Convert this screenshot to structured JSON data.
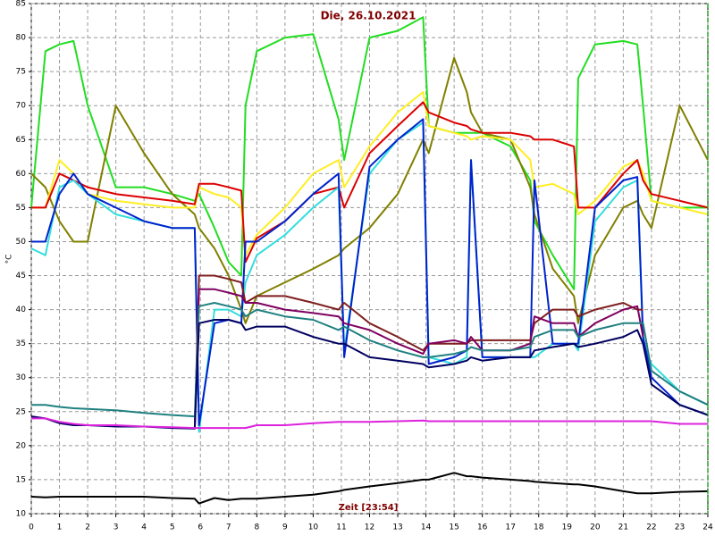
{
  "chart_data": {
    "type": "line",
    "title": "Die, 26.10.2021",
    "x_label": "Zeit [23:54]",
    "y_label": "°C",
    "x": [
      0,
      0.5,
      1,
      1.5,
      2,
      3,
      4,
      5,
      5.8,
      5.95,
      6.5,
      7,
      7.45,
      7.6,
      8,
      9,
      10,
      10.9,
      11.1,
      12,
      13,
      13.9,
      14.1,
      15,
      15.45,
      15.6,
      16,
      17,
      17.7,
      17.85,
      18.5,
      19.25,
      19.4,
      20,
      21,
      21.5,
      21.7,
      22,
      23,
      24
    ],
    "xlim": [
      0,
      24
    ],
    "xticks": [
      0,
      1,
      2,
      3,
      4,
      5,
      6,
      7,
      8,
      9,
      10,
      11,
      12,
      13,
      14,
      15,
      16,
      17,
      18,
      19,
      20,
      21,
      22,
      23,
      24
    ],
    "ylim": [
      10,
      85
    ],
    "yticks": [
      10,
      15,
      20,
      25,
      30,
      35,
      40,
      45,
      50,
      55,
      60,
      65,
      70,
      75,
      80,
      85
    ],
    "grid": true,
    "series": [
      {
        "color": "#22dd22",
        "values": [
          55,
          78,
          79,
          79.5,
          70,
          58,
          58,
          57,
          56,
          57,
          52,
          47,
          45,
          70,
          78,
          80,
          80.5,
          68,
          62,
          80,
          81,
          83,
          67,
          66,
          66,
          66,
          66,
          64,
          59,
          53,
          48,
          43,
          74,
          79,
          79.5,
          79,
          70,
          56,
          55,
          55
        ]
      },
      {
        "color": "#808000",
        "values": [
          60,
          58,
          53,
          50,
          50,
          70,
          63,
          57,
          54,
          52,
          49,
          45,
          40,
          38,
          42,
          44,
          46,
          48,
          49,
          52,
          57,
          65,
          63,
          77,
          72,
          69,
          66,
          65,
          58,
          54,
          46,
          42,
          38,
          48,
          55,
          56,
          54,
          52,
          70,
          62
        ]
      },
      {
        "color": "#ffee22",
        "values": [
          55,
          55,
          62,
          60,
          57,
          56,
          55.5,
          55,
          55,
          58,
          57,
          56.5,
          55,
          48,
          51,
          55,
          60,
          62,
          58,
          64,
          69,
          72,
          67,
          66,
          65.5,
          65,
          65.5,
          65,
          62,
          58,
          58.5,
          57,
          54,
          56,
          61,
          62,
          60,
          56,
          55,
          54
        ]
      },
      {
        "color": "#dd0000",
        "values": [
          55,
          55,
          60,
          59,
          58,
          57,
          56.5,
          56,
          55.5,
          58.5,
          58.5,
          58,
          57.5,
          47,
          50.5,
          53,
          57,
          58,
          55,
          63,
          67,
          70.5,
          69,
          67.5,
          67,
          66.5,
          66,
          66,
          65.5,
          65,
          65,
          64,
          55,
          55,
          60,
          62,
          59,
          57,
          56,
          55
        ]
      },
      {
        "color": "#33dddd",
        "values": [
          49,
          48,
          58,
          59,
          57,
          54,
          53,
          52,
          52,
          22,
          40,
          40,
          39,
          44,
          48,
          51,
          55,
          58,
          34,
          60,
          65,
          67.5,
          33,
          32,
          33,
          62,
          33,
          33,
          33,
          33,
          35,
          35,
          34,
          53,
          58,
          59,
          35,
          32,
          28,
          26
        ]
      },
      {
        "color": "#0022cc",
        "values": [
          50,
          50,
          57,
          60,
          57,
          55,
          53,
          52,
          52,
          23,
          38,
          38.5,
          38,
          50,
          50,
          53,
          57,
          60,
          33,
          61,
          65,
          68,
          32,
          33,
          34,
          62,
          33,
          33,
          33,
          59,
          35,
          35,
          35,
          55,
          59,
          59.5,
          36,
          30,
          26,
          24.5
        ]
      },
      {
        "color": "#7f1f1f",
        "values": [
          null,
          null,
          null,
          null,
          null,
          null,
          null,
          null,
          22.5,
          45,
          45,
          44.5,
          44,
          41,
          42,
          42,
          41,
          40,
          41,
          38,
          36,
          34,
          35,
          35,
          35,
          35.5,
          35.5,
          35.5,
          35.5,
          38,
          40,
          40,
          39,
          40,
          41,
          40,
          40,
          null,
          null,
          null
        ]
      },
      {
        "color": "#800060",
        "values": [
          null,
          null,
          null,
          null,
          null,
          null,
          null,
          null,
          22.5,
          43,
          43,
          42.5,
          42,
          41,
          41,
          40,
          39.5,
          39,
          38,
          37,
          35,
          33.5,
          35,
          35.5,
          35,
          36,
          34,
          34,
          35,
          39,
          38,
          38,
          36,
          38,
          40,
          40.5,
          36,
          null,
          null,
          null
        ]
      },
      {
        "color": "#208080",
        "values": [
          26,
          26,
          25.7,
          25.5,
          25.4,
          25.2,
          24.8,
          24.5,
          24.3,
          40.5,
          41,
          40.5,
          40,
          39,
          40,
          39,
          38.5,
          37,
          37.5,
          35.5,
          34,
          33,
          33,
          33.5,
          34,
          34.5,
          34,
          34,
          34.5,
          36,
          37,
          37,
          36,
          37,
          38,
          38,
          38,
          31,
          28,
          26
        ]
      },
      {
        "color": "#000060",
        "values": [
          24.3,
          24,
          23.3,
          23,
          23,
          22.8,
          22.8,
          22.6,
          22.5,
          38,
          38.5,
          38.5,
          38,
          37,
          37.5,
          37.5,
          36,
          35,
          35,
          33,
          32.5,
          32,
          31.5,
          32,
          32.5,
          33,
          32.5,
          33,
          33,
          34,
          34.5,
          35,
          34.5,
          35,
          36,
          37,
          35,
          29,
          26,
          24.5
        ]
      },
      {
        "color": "#dd22dd",
        "values": [
          24,
          24,
          23.5,
          23.2,
          23,
          23,
          22.8,
          22.7,
          22.6,
          22.6,
          22.6,
          22.6,
          22.6,
          22.6,
          23,
          23,
          23.3,
          23.5,
          23.5,
          23.5,
          23.6,
          23.7,
          23.6,
          23.6,
          23.6,
          23.6,
          23.6,
          23.6,
          23.6,
          23.6,
          23.6,
          23.6,
          23.6,
          23.6,
          23.6,
          23.6,
          23.6,
          23.6,
          23.2,
          23.2
        ]
      },
      {
        "color": "#000000",
        "values": [
          12.5,
          12.4,
          12.5,
          12.5,
          12.5,
          12.5,
          12.5,
          12.3,
          12.2,
          11.5,
          12.3,
          12,
          12.2,
          12.2,
          12.2,
          12.5,
          12.8,
          13.3,
          13.5,
          14,
          14.5,
          15,
          15,
          16,
          15.5,
          15.5,
          15.3,
          15,
          14.8,
          14.7,
          14.5,
          14.3,
          14.3,
          14,
          13.3,
          13,
          13,
          13,
          13.2,
          13.3
        ]
      }
    ]
  }
}
